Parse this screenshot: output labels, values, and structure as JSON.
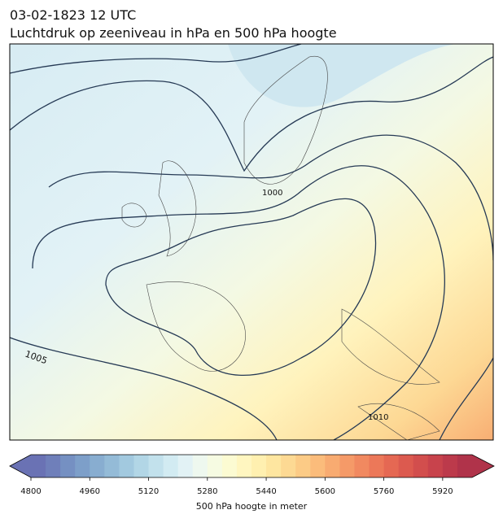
{
  "header": {
    "title": "03-02-1823 12 UTC",
    "subtitle": "Luchtdruk op zeeniveau in hPa en 500 hPa hoogte"
  },
  "map": {
    "contour_labels": [
      "1005",
      "1000",
      "1010"
    ]
  },
  "colorbar": {
    "label": "500 hPa hoogte in meter",
    "lim": [
      4800,
      6000
    ],
    "ticks": [
      4800,
      4960,
      5120,
      5280,
      5440,
      5600,
      5760,
      5920
    ],
    "colors": [
      "#6a72b4",
      "#6f7fba",
      "#7590c2",
      "#7d9fc9",
      "#88add0",
      "#94bbd7",
      "#a2c9df",
      "#b2d6e6",
      "#c2e1ec",
      "#d2ebf2",
      "#e2f2f5",
      "#eef8ef",
      "#f6fbe2",
      "#fcfbd2",
      "#fff6c0",
      "#fff0b0",
      "#fee6a0",
      "#fdd993",
      "#fccb86",
      "#fbbc7b",
      "#f8ab71",
      "#f59a68",
      "#f18960",
      "#ec7859",
      "#e56853",
      "#dc5a4f",
      "#d24e4d",
      "#c8434c",
      "#bc3a4b",
      "#b0334a"
    ]
  }
}
